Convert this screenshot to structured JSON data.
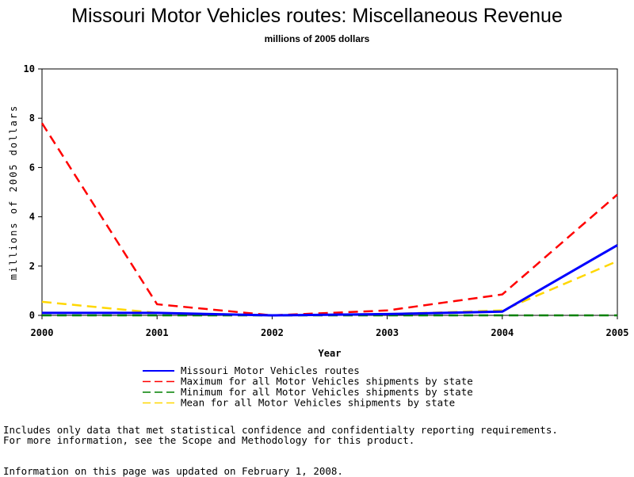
{
  "chart_data": {
    "type": "line",
    "title": "Missouri Motor Vehicles routes: Miscellaneous Revenue",
    "subtitle": "millions of 2005 dollars",
    "xlabel": "Year",
    "ylabel": "millions of 2005 dollars",
    "xlim": [
      2000,
      2005
    ],
    "ylim": [
      0,
      10
    ],
    "xticks": [
      "2000",
      "2001",
      "2002",
      "2003",
      "2004",
      "2005"
    ],
    "yticks": [
      "0",
      "2",
      "4",
      "6",
      "8",
      "10"
    ],
    "grid": false,
    "legend_position": "bottom",
    "x": [
      2000,
      2001,
      2002,
      2003,
      2004,
      2005
    ],
    "series": [
      {
        "name": "Missouri Motor Vehicles routes",
        "color": "#0000ff",
        "dash": "solid",
        "values": [
          0.1,
          0.1,
          0.0,
          0.05,
          0.15,
          2.85
        ]
      },
      {
        "name": "Maximum for all Motor Vehicles shipments by state",
        "color": "#ff0000",
        "dash": "dashed",
        "values": [
          7.8,
          0.45,
          0.0,
          0.2,
          0.85,
          4.9
        ]
      },
      {
        "name": "Minimum for all Motor Vehicles shipments by state",
        "color": "#008000",
        "dash": "dashed",
        "values": [
          0.0,
          0.0,
          0.0,
          0.0,
          0.0,
          0.0
        ]
      },
      {
        "name": "Mean for all Motor Vehicles shipments by state",
        "color": "#ffd700",
        "dash": "dashed",
        "values": [
          0.55,
          0.1,
          0.0,
          0.05,
          0.2,
          2.2
        ]
      }
    ]
  },
  "footnotes": {
    "line1": "Includes only data that met statistical confidence and confidentialty reporting requirements.",
    "line2": "For more information, see the Scope and Methodology for this product.",
    "line3": "Information on this page was updated on February 1, 2008."
  }
}
